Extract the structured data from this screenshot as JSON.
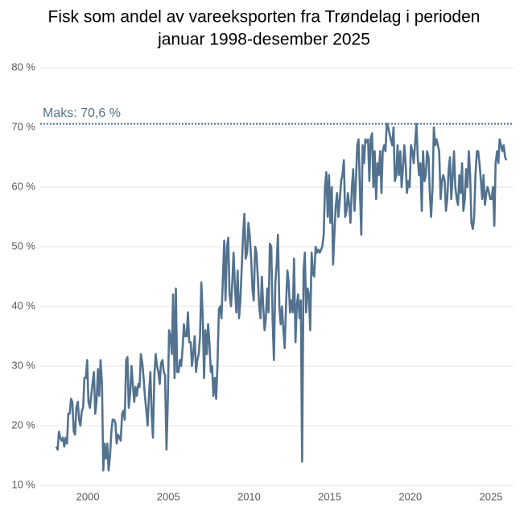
{
  "chart_data": {
    "type": "line",
    "title": [
      "Fisk som andel av vareeksporten fra Trøndelag i perioden",
      "januar 1998-desember 2025"
    ],
    "color": "#52728f",
    "xlim": [
      1997.5,
      2026.4
    ],
    "xticks": [
      2000,
      2005,
      2010,
      2015,
      2020,
      2025
    ],
    "ylim": [
      10,
      80
    ],
    "yticks": [
      {
        "value": 10,
        "label": "10 %"
      },
      {
        "value": 20,
        "label": "20 %"
      },
      {
        "value": 30,
        "label": "30 %"
      },
      {
        "value": 40,
        "label": "40 %"
      },
      {
        "value": 50,
        "label": "50 %"
      },
      {
        "value": 60,
        "label": "60 %"
      },
      {
        "value": 70,
        "label": "70 %"
      },
      {
        "value": 80,
        "label": "80 %"
      }
    ],
    "grid": true,
    "max_line": {
      "value": 70.6,
      "label": "Maks: 70,6 %"
    },
    "x": [
      1998.04,
      1998.13,
      1998.21,
      1998.29,
      1998.38,
      1998.46,
      1998.54,
      1998.63,
      1998.71,
      1998.79,
      1998.88,
      1998.96,
      1999.04,
      1999.13,
      1999.21,
      1999.29,
      1999.38,
      1999.46,
      1999.54,
      1999.63,
      1999.71,
      1999.79,
      1999.88,
      1999.96,
      2000.04,
      2000.13,
      2000.21,
      2000.29,
      2000.38,
      2000.46,
      2000.54,
      2000.63,
      2000.71,
      2000.79,
      2000.88,
      2000.96,
      2001.04,
      2001.13,
      2001.21,
      2001.29,
      2001.38,
      2001.46,
      2001.54,
      2001.63,
      2001.71,
      2001.79,
      2001.88,
      2001.96,
      2002.04,
      2002.13,
      2002.21,
      2002.29,
      2002.38,
      2002.46,
      2002.54,
      2002.63,
      2002.71,
      2002.79,
      2002.88,
      2002.96,
      2003.04,
      2003.13,
      2003.21,
      2003.29,
      2003.38,
      2003.46,
      2003.54,
      2003.63,
      2003.71,
      2003.79,
      2003.88,
      2003.96,
      2004.04,
      2004.13,
      2004.21,
      2004.29,
      2004.38,
      2004.46,
      2004.54,
      2004.63,
      2004.71,
      2004.79,
      2004.88,
      2004.96,
      2005.04,
      2005.13,
      2005.21,
      2005.29,
      2005.38,
      2005.46,
      2005.54,
      2005.63,
      2005.71,
      2005.79,
      2005.88,
      2005.96,
      2006.04,
      2006.13,
      2006.21,
      2006.29,
      2006.38,
      2006.46,
      2006.54,
      2006.63,
      2006.71,
      2006.79,
      2006.88,
      2006.96,
      2007.04,
      2007.13,
      2007.21,
      2007.29,
      2007.38,
      2007.46,
      2007.54,
      2007.63,
      2007.71,
      2007.79,
      2007.88,
      2007.96,
      2008.04,
      2008.13,
      2008.21,
      2008.29,
      2008.38,
      2008.46,
      2008.54,
      2008.63,
      2008.71,
      2008.79,
      2008.88,
      2008.96,
      2009.04,
      2009.13,
      2009.21,
      2009.29,
      2009.38,
      2009.46,
      2009.54,
      2009.63,
      2009.71,
      2009.79,
      2009.88,
      2009.96,
      2010.04,
      2010.13,
      2010.21,
      2010.29,
      2010.38,
      2010.46,
      2010.54,
      2010.63,
      2010.71,
      2010.79,
      2010.88,
      2010.96,
      2011.04,
      2011.13,
      2011.21,
      2011.29,
      2011.38,
      2011.46,
      2011.54,
      2011.63,
      2011.71,
      2011.79,
      2011.88,
      2011.96,
      2012.04,
      2012.13,
      2012.21,
      2012.29,
      2012.38,
      2012.46,
      2012.54,
      2012.63,
      2012.71,
      2012.79,
      2012.88,
      2012.96,
      2013.04,
      2013.13,
      2013.21,
      2013.29,
      2013.38,
      2013.46,
      2013.54,
      2013.63,
      2013.71,
      2013.79,
      2013.88,
      2013.96,
      2014.04,
      2014.13,
      2014.21,
      2014.29,
      2014.38,
      2014.46,
      2014.54,
      2014.63,
      2014.71,
      2014.79,
      2014.88,
      2014.96,
      2015.04,
      2015.13,
      2015.21,
      2015.29,
      2015.38,
      2015.46,
      2015.54,
      2015.63,
      2015.71,
      2015.79,
      2015.88,
      2015.96,
      2016.04,
      2016.13,
      2016.21,
      2016.29,
      2016.38,
      2016.46,
      2016.54,
      2016.63,
      2016.71,
      2016.79,
      2016.88,
      2016.96,
      2017.04,
      2017.13,
      2017.21,
      2017.29,
      2017.38,
      2017.46,
      2017.54,
      2017.63,
      2017.71,
      2017.79,
      2017.88,
      2017.96,
      2018.04,
      2018.13,
      2018.21,
      2018.29,
      2018.38,
      2018.46,
      2018.54,
      2018.63,
      2018.71,
      2018.79,
      2018.88,
      2018.96,
      2019.04,
      2019.13,
      2019.21,
      2019.29,
      2019.38,
      2019.46,
      2019.54,
      2019.63,
      2019.71,
      2019.79,
      2019.88,
      2019.96,
      2020.04,
      2020.13,
      2020.21,
      2020.29,
      2020.38,
      2020.46,
      2020.54,
      2020.63,
      2020.71,
      2020.79,
      2020.88,
      2020.96,
      2021.04,
      2021.13,
      2021.21,
      2021.29,
      2021.38,
      2021.46,
      2021.54,
      2021.63,
      2021.71,
      2021.79,
      2021.88,
      2021.96,
      2022.04,
      2022.13,
      2022.21,
      2022.29,
      2022.38,
      2022.46,
      2022.54,
      2022.63,
      2022.71,
      2022.79,
      2022.88,
      2022.96,
      2023.04,
      2023.13,
      2023.21,
      2023.29,
      2023.38,
      2023.46,
      2023.54,
      2023.63,
      2023.71,
      2023.79,
      2023.88,
      2023.96,
      2024.04,
      2024.13,
      2024.21,
      2024.29,
      2024.38,
      2024.46,
      2024.54,
      2024.63,
      2024.71,
      2024.79,
      2024.88,
      2024.96,
      2025.04,
      2025.13,
      2025.21,
      2025.29,
      2025.38,
      2025.46,
      2025.54,
      2025.63,
      2025.71,
      2025.79,
      2025.88,
      2025.96
    ],
    "values": [
      16.5,
      16,
      19,
      18,
      17.5,
      18,
      16.5,
      18,
      17,
      22,
      22,
      24.5,
      24,
      19,
      18.5,
      23,
      24,
      21,
      20,
      22.5,
      23,
      28,
      28,
      31,
      24,
      23,
      25,
      27,
      29,
      22,
      24,
      29.5,
      25,
      31,
      27,
      12.5,
      17,
      14.5,
      17,
      12.5,
      15,
      19,
      21,
      21,
      20.5,
      17,
      18.5,
      18,
      17.5,
      22,
      22.5,
      21,
      31,
      31.5,
      23,
      25.5,
      30,
      27,
      24,
      26.5,
      25,
      27,
      26.5,
      32,
      30.5,
      28,
      25,
      22.5,
      20,
      25,
      29,
      22,
      18,
      28.5,
      32,
      30,
      29,
      27,
      30.5,
      31,
      29,
      28.5,
      16,
      24,
      36,
      35,
      32,
      42,
      28,
      43,
      29,
      29,
      31,
      30,
      33,
      37,
      35,
      35,
      39,
      34,
      34,
      30,
      32,
      35,
      29,
      31,
      32,
      35,
      44,
      38,
      28,
      36,
      32,
      37,
      34,
      29,
      30,
      25,
      28,
      24.5,
      30,
      39.5,
      40,
      38,
      45,
      51,
      41,
      50,
      51.5,
      42,
      40,
      44,
      49,
      43,
      39,
      46,
      38,
      41,
      46,
      52,
      55.5,
      48,
      49,
      54,
      52,
      48,
      43,
      41,
      50,
      49,
      45,
      40,
      38,
      45,
      40,
      36,
      38,
      43,
      39,
      50.5,
      50,
      38,
      31,
      44,
      47,
      52,
      40,
      37,
      40,
      36,
      33,
      40,
      46,
      44,
      39,
      41,
      39,
      48,
      34,
      40,
      42,
      38,
      41,
      14,
      46,
      49,
      39,
      43,
      42,
      36,
      49,
      45.5,
      45,
      50,
      49,
      49.5,
      49,
      49.5,
      50,
      52,
      60,
      62.5,
      55,
      62,
      54,
      60,
      47,
      52,
      57,
      59,
      55,
      58,
      61,
      62,
      64.5,
      55,
      56,
      59,
      57,
      54,
      60,
      63,
      56,
      61,
      67,
      68,
      59,
      52,
      67,
      64,
      68,
      67.5,
      68,
      61,
      68,
      69,
      60,
      66,
      58,
      64,
      62,
      66,
      59,
      66,
      67,
      66,
      70.6,
      70,
      69,
      68,
      67,
      70,
      61,
      62,
      67,
      62,
      66,
      60,
      63,
      67,
      64,
      59,
      61,
      60,
      67,
      66,
      64,
      67,
      70.6,
      65,
      62,
      64,
      56,
      66,
      61,
      62,
      66,
      65,
      59,
      55,
      60,
      70,
      67,
      68,
      67,
      66,
      58,
      61,
      62,
      61,
      56,
      58,
      63,
      65,
      58,
      62,
      66,
      60,
      58,
      57,
      62,
      59,
      64,
      56,
      58,
      63,
      60,
      66,
      62,
      54,
      53,
      55,
      62,
      66,
      66,
      64,
      61,
      58,
      62,
      57,
      59,
      60,
      59,
      58,
      58,
      60,
      53.5,
      64,
      66,
      64,
      68,
      67,
      66,
      67,
      65,
      64.5
    ]
  }
}
